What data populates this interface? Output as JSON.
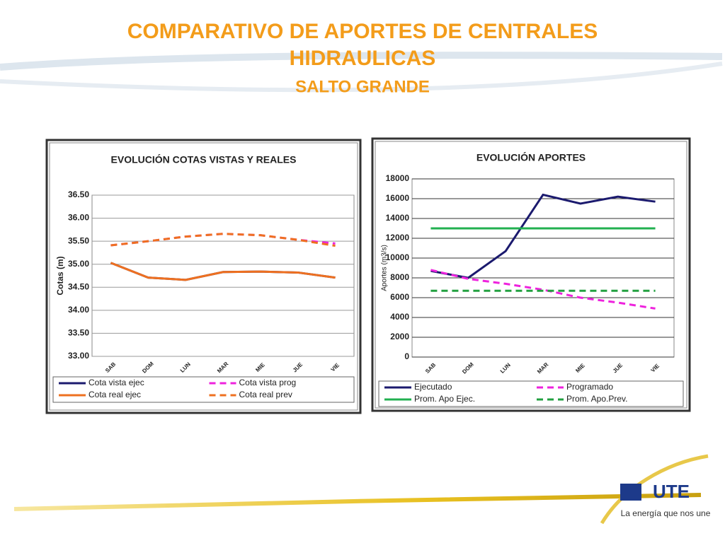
{
  "title": "COMPARATIVO DE APORTES DE CENTRALES HIDRAULICAS",
  "subtitle": "SALTO GRANDE",
  "chart_data": [
    {
      "type": "line",
      "title": "EVOLUCIÓN  COTAS VISTAS Y REALES",
      "y_label": "Cotas (m)",
      "categories": [
        "SAB",
        "DOM",
        "LUN",
        "MAR",
        "MIE",
        "JUE",
        "VIE"
      ],
      "ylim": [
        33,
        36.5
      ],
      "yticks": [
        {
          "value": 33,
          "label": "33.00"
        },
        {
          "value": 33.5,
          "label": "33.50"
        },
        {
          "value": 34,
          "label": "34.00"
        },
        {
          "value": 34.5,
          "label": "34.50"
        },
        {
          "value": 35,
          "label": "35.00"
        },
        {
          "value": 35.5,
          "label": "35.50"
        },
        {
          "value": 36,
          "label": "36.00"
        },
        {
          "value": 36.5,
          "label": "36.50"
        }
      ],
      "grid": true,
      "series": [
        {
          "name": "Cota vista ejec",
          "color": "#1b1a6e",
          "dash": false,
          "values": [
            35.03,
            34.71,
            34.66,
            34.83,
            34.84,
            34.82,
            34.71
          ]
        },
        {
          "name": "Cota vista prog",
          "color": "#ee22dd",
          "dash": true,
          "values": [
            35.41,
            35.5,
            35.6,
            35.66,
            35.63,
            35.53,
            35.45
          ]
        },
        {
          "name": "Cota real ejec",
          "color": "#ee7020",
          "dash": false,
          "values": [
            35.03,
            34.71,
            34.66,
            34.83,
            34.84,
            34.82,
            34.71
          ]
        },
        {
          "name": "Cota real prev",
          "color": "#ee7020",
          "dash": true,
          "values": [
            35.41,
            35.5,
            35.6,
            35.66,
            35.63,
            35.53,
            35.4
          ]
        }
      ]
    },
    {
      "type": "line",
      "title": "EVOLUCIÓN  APORTES",
      "y_label": "Aportes (m3/s)",
      "categories": [
        "SAB",
        "DOM",
        "LUN",
        "MAR",
        "MIE",
        "JUE",
        "VIE"
      ],
      "ylim": [
        0,
        18000
      ],
      "yticks": [
        0,
        2000,
        4000,
        6000,
        8000,
        10000,
        12000,
        14000,
        16000,
        18000
      ],
      "grid": true,
      "series": [
        {
          "name": "Ejecutado",
          "color": "#1b1a6e",
          "dash": false,
          "values": [
            8700,
            8000,
            10700,
            16400,
            15500,
            16200,
            15700
          ]
        },
        {
          "name": "Programado",
          "color": "#ee22dd",
          "dash": true,
          "values": [
            8800,
            7900,
            7400,
            6800,
            6000,
            5500,
            4900
          ]
        },
        {
          "name": "Prom. Apo Ejec.",
          "color": "#22b050",
          "dash": false,
          "values": [
            13000,
            13000,
            13000,
            13000,
            13000,
            13000,
            13000
          ]
        },
        {
          "name": "Prom. Apo.Prev.",
          "color": "#22a040",
          "dash": true,
          "values": [
            6700,
            6700,
            6700,
            6700,
            6700,
            6700,
            6700
          ]
        }
      ]
    }
  ],
  "logo": {
    "brand": "UTE",
    "tagline": "La energía que nos une"
  }
}
